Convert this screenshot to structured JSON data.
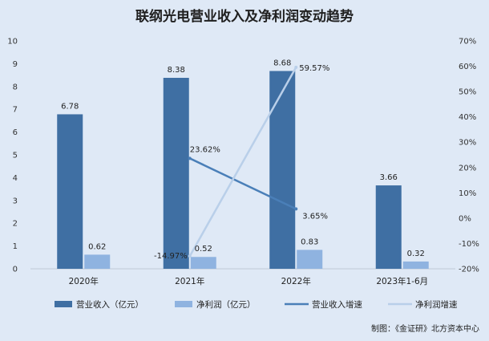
{
  "chart_data": {
    "type": "bar",
    "title": "联纲光电营业收入及净利润变动趋势",
    "categories": [
      "2020年",
      "2021年",
      "2022年",
      "2023年1-6月"
    ],
    "ylim": [
      0,
      10
    ],
    "y2lim": [
      -20,
      70
    ],
    "yticks": [
      "0",
      "1",
      "2",
      "3",
      "4",
      "5",
      "6",
      "7",
      "8",
      "9",
      "10"
    ],
    "y2ticks": [
      "-20%",
      "-10%",
      "0%",
      "10%",
      "20%",
      "30%",
      "40%",
      "50%",
      "60%",
      "70%"
    ],
    "grid": false,
    "legend_position": "bottom",
    "bar_series": [
      {
        "name": "营业收入（亿元）",
        "color": "#3f6fa3",
        "values": [
          6.78,
          8.38,
          8.68,
          3.66
        ],
        "labels": [
          "6.78",
          "8.38",
          "8.68",
          "3.66"
        ]
      },
      {
        "name": "净利润（亿元）",
        "color": "#8fb3e0",
        "values": [
          0.62,
          0.52,
          0.83,
          0.32
        ],
        "labels": [
          "0.62",
          "0.52",
          "0.83",
          "0.32"
        ]
      }
    ],
    "line_series": [
      {
        "name": "营业收入增速",
        "color": "#4a7fb8",
        "axis": "right",
        "values": [
          null,
          23.62,
          3.65,
          null
        ],
        "labels": [
          "",
          "23.62%",
          "3.65%",
          ""
        ]
      },
      {
        "name": "净利润增速",
        "color": "#b9cfe9",
        "axis": "right",
        "values": [
          null,
          -14.97,
          59.57,
          null
        ],
        "labels": [
          "",
          "-14.97%",
          "59.57%",
          ""
        ]
      }
    ]
  },
  "source_note": "制图：《金证研》北方资本中心"
}
